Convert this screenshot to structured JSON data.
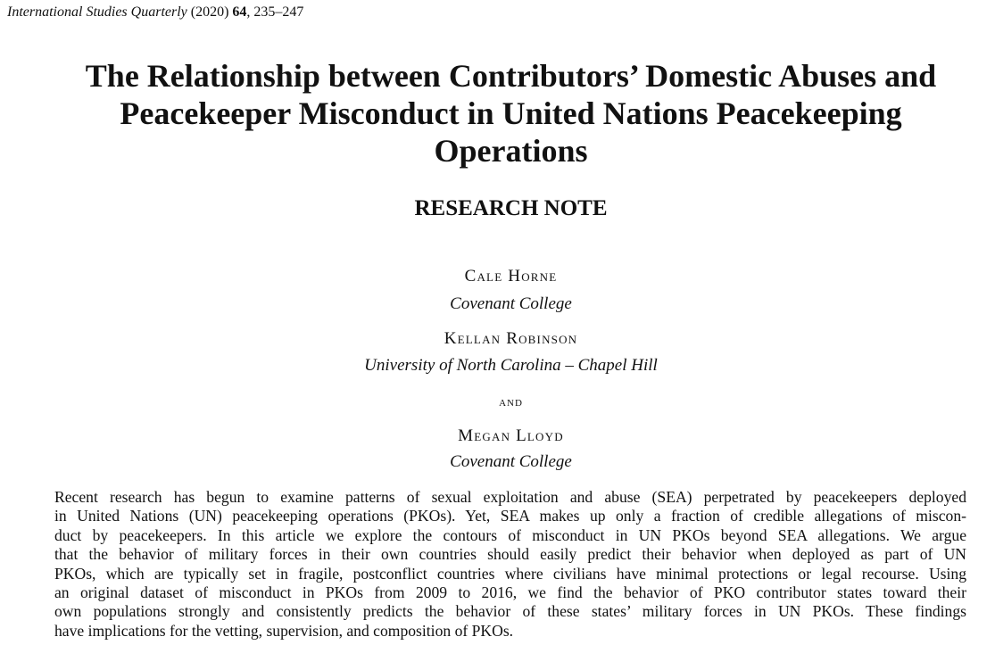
{
  "citation": {
    "journal": "International Studies Quarterly",
    "year": "(2020)",
    "volume": "64",
    "pages": ", 235–247"
  },
  "title_lines": [
    "The Relationship between Contributors’ Domestic Abuses and",
    "Peacekeeper Misconduct in United Nations Peacekeeping",
    "Operations"
  ],
  "article_type": "RESEARCH NOTE",
  "authors": [
    {
      "name": "Cale Horne",
      "affiliation": "Covenant College"
    },
    {
      "name": "Kellan Robinson",
      "affiliation": "University of North Carolina – Chapel Hill"
    },
    {
      "name": "Megan Lloyd",
      "affiliation": "Covenant College"
    }
  ],
  "and_text": "AND",
  "abstract_lines": [
    "Recent research has begun to examine patterns of sexual exploitation and abuse (SEA) perpetrated by peacekeepers deployed",
    "in United Nations (UN) peacekeeping operations (PKOs). Yet, SEA makes up only a fraction of credible allegations of miscon-",
    "duct by peacekeepers. In this article we explore the contours of misconduct in UN PKOs beyond SEA allegations. We argue",
    "that the behavior of military forces in their own countries should easily predict their behavior when deployed as part of UN",
    "PKOs, which are typically set in fragile, postconflict countries where civilians have minimal protections or legal recourse. Using",
    "an original dataset of misconduct in PKOs from 2009 to 2016, we find the behavior of PKO contributor states toward their",
    "own populations strongly and consistently predicts the behavior of these states’ military forces in UN PKOs. These findings",
    "have implications for the vetting, supervision, and composition of PKOs."
  ]
}
